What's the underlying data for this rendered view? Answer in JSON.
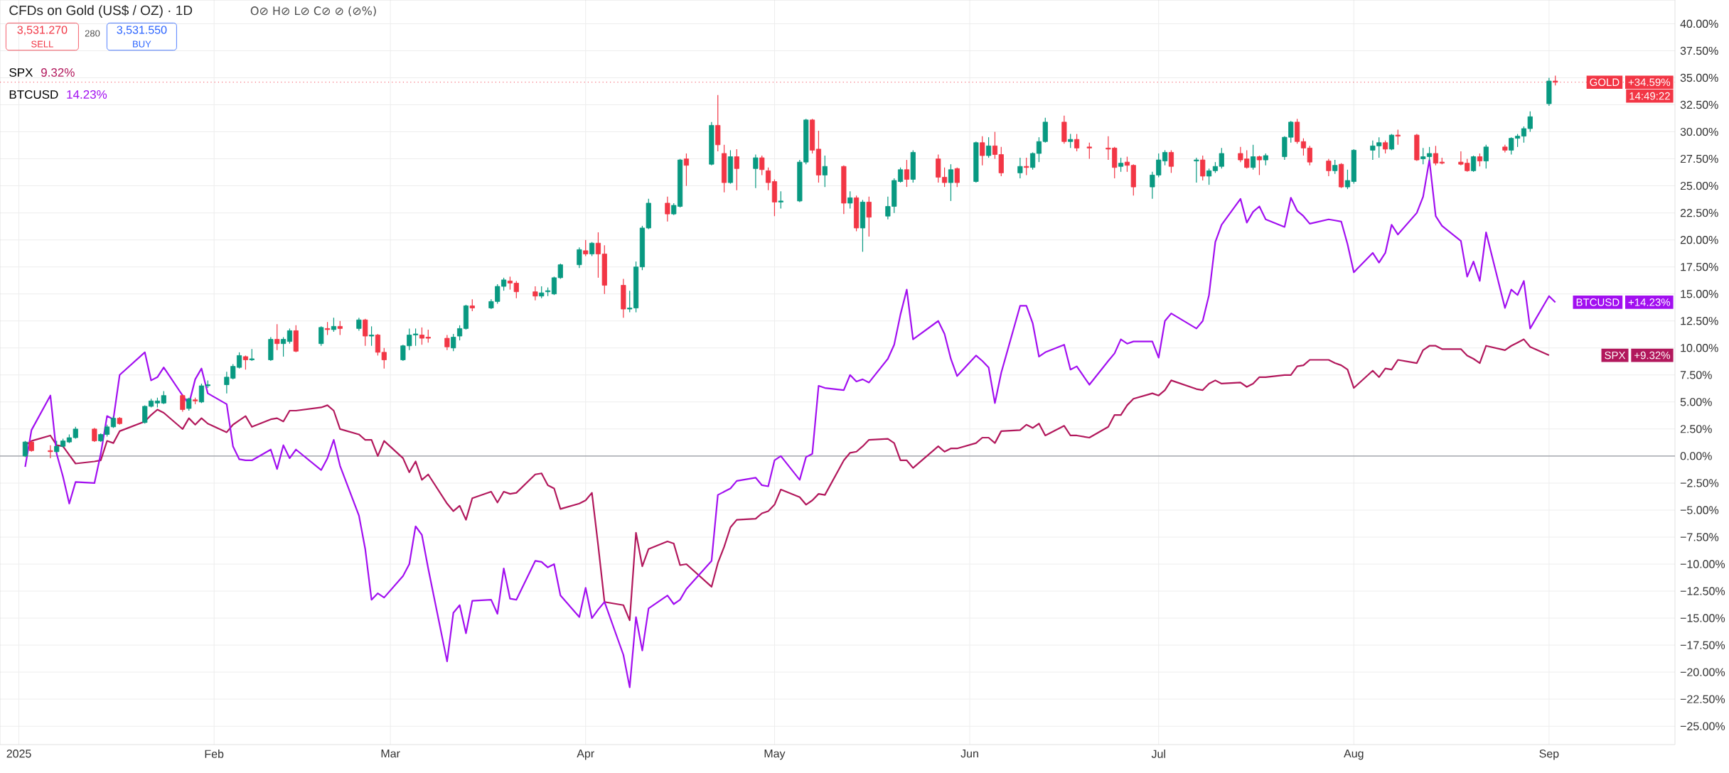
{
  "chart_data": {
    "type": "candlestick",
    "title": "CFDs on Gold (US$ / OZ) · 1D",
    "x": [
      "2025-01-02",
      "2025-01-03",
      "2025-01-06",
      "2025-01-07",
      "2025-01-08",
      "2025-01-09",
      "2025-01-10",
      "2025-01-13",
      "2025-01-14",
      "2025-01-15",
      "2025-01-16",
      "2025-01-17",
      "2025-01-21",
      "2025-01-22",
      "2025-01-23",
      "2025-01-24",
      "2025-01-27",
      "2025-01-28",
      "2025-01-29",
      "2025-01-30",
      "2025-01-31",
      "2025-02-03",
      "2025-02-04",
      "2025-02-05",
      "2025-02-06",
      "2025-02-07",
      "2025-02-10",
      "2025-02-11",
      "2025-02-12",
      "2025-02-13",
      "2025-02-14",
      "2025-02-18",
      "2025-02-19",
      "2025-02-20",
      "2025-02-21",
      "2025-02-24",
      "2025-02-25",
      "2025-02-26",
      "2025-02-27",
      "2025-02-28",
      "2025-03-03",
      "2025-03-04",
      "2025-03-05",
      "2025-03-06",
      "2025-03-07",
      "2025-03-10",
      "2025-03-11",
      "2025-03-12",
      "2025-03-13",
      "2025-03-14",
      "2025-03-17",
      "2025-03-18",
      "2025-03-19",
      "2025-03-20",
      "2025-03-21",
      "2025-03-24",
      "2025-03-25",
      "2025-03-26",
      "2025-03-27",
      "2025-03-28",
      "2025-03-31",
      "2025-04-01",
      "2025-04-02",
      "2025-04-03",
      "2025-04-04",
      "2025-04-07",
      "2025-04-08",
      "2025-04-09",
      "2025-04-10",
      "2025-04-11",
      "2025-04-14",
      "2025-04-15",
      "2025-04-16",
      "2025-04-17",
      "2025-04-21",
      "2025-04-22",
      "2025-04-23",
      "2025-04-24",
      "2025-04-25",
      "2025-04-28",
      "2025-04-29",
      "2025-04-30",
      "2025-05-01",
      "2025-05-02",
      "2025-05-05",
      "2025-05-06",
      "2025-05-07",
      "2025-05-08",
      "2025-05-09",
      "2025-05-12",
      "2025-05-13",
      "2025-05-14",
      "2025-05-15",
      "2025-05-16",
      "2025-05-19",
      "2025-05-20",
      "2025-05-21",
      "2025-05-22",
      "2025-05-23",
      "2025-05-27",
      "2025-05-28",
      "2025-05-29",
      "2025-05-30",
      "2025-06-02",
      "2025-06-03",
      "2025-06-04",
      "2025-06-05",
      "2025-06-06",
      "2025-06-09",
      "2025-06-10",
      "2025-06-11",
      "2025-06-12",
      "2025-06-13",
      "2025-06-16",
      "2025-06-17",
      "2025-06-18",
      "2025-06-20",
      "2025-06-23",
      "2025-06-24",
      "2025-06-25",
      "2025-06-26",
      "2025-06-27",
      "2025-06-30",
      "2025-07-01",
      "2025-07-02",
      "2025-07-03",
      "2025-07-07",
      "2025-07-08",
      "2025-07-09",
      "2025-07-10",
      "2025-07-11",
      "2025-07-14",
      "2025-07-15",
      "2025-07-16",
      "2025-07-17",
      "2025-07-18",
      "2025-07-21",
      "2025-07-22",
      "2025-07-23",
      "2025-07-24",
      "2025-07-25",
      "2025-07-28",
      "2025-07-29",
      "2025-07-30",
      "2025-07-31",
      "2025-08-01",
      "2025-08-04",
      "2025-08-05",
      "2025-08-06",
      "2025-08-07",
      "2025-08-08",
      "2025-08-11",
      "2025-08-12",
      "2025-08-13",
      "2025-08-14",
      "2025-08-15",
      "2025-08-18",
      "2025-08-19",
      "2025-08-20",
      "2025-08-21",
      "2025-08-22",
      "2025-08-25",
      "2025-08-26",
      "2025-08-27",
      "2025-08-28",
      "2025-08-29",
      "2025-09-01",
      "2025-09-02"
    ],
    "series": [
      {
        "name": "GOLD",
        "ohlc": [
          [
            0.0,
            1.4,
            -0.1,
            1.3
          ],
          [
            1.3,
            1.4,
            0.4,
            0.5
          ],
          [
            0.5,
            1.0,
            -0.2,
            0.4
          ],
          [
            0.4,
            1.4,
            0.3,
            0.9
          ],
          [
            0.9,
            1.6,
            0.8,
            1.4
          ],
          [
            1.3,
            2.0,
            1.2,
            1.7
          ],
          [
            1.7,
            2.7,
            1.6,
            2.5
          ],
          [
            2.5,
            2.6,
            1.3,
            1.4
          ],
          [
            1.4,
            2.1,
            1.3,
            2.0
          ],
          [
            2.0,
            2.9,
            1.8,
            2.7
          ],
          [
            2.7,
            3.7,
            2.6,
            3.5
          ],
          [
            3.5,
            3.6,
            2.9,
            3.0
          ],
          [
            3.1,
            4.7,
            3.0,
            4.6
          ],
          [
            4.6,
            5.3,
            4.5,
            5.1
          ],
          [
            4.9,
            5.4,
            4.5,
            5.1
          ],
          [
            4.9,
            6.0,
            4.8,
            5.6
          ],
          [
            5.6,
            5.7,
            4.1,
            4.3
          ],
          [
            4.4,
            5.4,
            4.2,
            5.3
          ],
          [
            5.2,
            5.4,
            4.8,
            5.1
          ],
          [
            5.0,
            6.7,
            4.9,
            6.5
          ],
          [
            6.5,
            7.0,
            6.3,
            6.6
          ],
          [
            6.6,
            7.8,
            5.8,
            7.3
          ],
          [
            7.2,
            8.5,
            7.1,
            8.3
          ],
          [
            8.2,
            9.6,
            8.1,
            9.3
          ],
          [
            9.2,
            9.3,
            8.0,
            8.9
          ],
          [
            8.9,
            9.9,
            8.8,
            9.0
          ],
          [
            8.9,
            11.0,
            8.8,
            10.8
          ],
          [
            10.8,
            12.2,
            9.8,
            10.4
          ],
          [
            10.4,
            11.0,
            9.2,
            10.8
          ],
          [
            10.6,
            11.8,
            10.4,
            11.6
          ],
          [
            11.6,
            12.1,
            9.6,
            9.7
          ],
          [
            10.4,
            12.0,
            10.2,
            11.9
          ],
          [
            11.8,
            12.4,
            11.2,
            11.7
          ],
          [
            11.7,
            12.8,
            11.5,
            12.0
          ],
          [
            12.0,
            12.5,
            11.2,
            11.8
          ],
          [
            11.8,
            12.8,
            11.6,
            12.6
          ],
          [
            12.6,
            12.7,
            10.2,
            11.1
          ],
          [
            11.1,
            12.0,
            10.2,
            11.2
          ],
          [
            11.2,
            11.3,
            9.3,
            9.6
          ],
          [
            9.6,
            10.0,
            8.1,
            8.9
          ],
          [
            8.9,
            10.3,
            8.8,
            10.2
          ],
          [
            10.2,
            11.8,
            9.8,
            11.2
          ],
          [
            11.2,
            11.8,
            10.2,
            11.3
          ],
          [
            11.2,
            11.9,
            10.3,
            10.9
          ],
          [
            11.0,
            11.7,
            10.5,
            10.9
          ],
          [
            10.9,
            11.2,
            9.8,
            10.1
          ],
          [
            10.0,
            11.3,
            9.7,
            11.0
          ],
          [
            11.1,
            12.1,
            10.7,
            11.8
          ],
          [
            11.8,
            14.0,
            11.7,
            13.9
          ],
          [
            13.9,
            14.5,
            13.4,
            13.7
          ],
          [
            13.7,
            14.5,
            13.6,
            14.3
          ],
          [
            14.3,
            15.9,
            14.1,
            15.7
          ],
          [
            15.7,
            16.5,
            15.3,
            16.3
          ],
          [
            16.2,
            16.6,
            15.4,
            16.0
          ],
          [
            16.0,
            16.2,
            14.6,
            15.2
          ],
          [
            15.2,
            15.7,
            14.4,
            14.8
          ],
          [
            14.8,
            15.7,
            14.6,
            15.1
          ],
          [
            15.2,
            15.6,
            14.8,
            15.3
          ],
          [
            15.0,
            16.6,
            14.9,
            16.5
          ],
          [
            16.5,
            17.8,
            16.4,
            17.7
          ],
          [
            17.7,
            19.3,
            17.4,
            19.1
          ],
          [
            19.0,
            20.0,
            18.5,
            18.7
          ],
          [
            18.7,
            19.8,
            18.5,
            19.7
          ],
          [
            19.7,
            20.7,
            16.5,
            18.7
          ],
          [
            18.7,
            19.5,
            15.0,
            15.8
          ],
          [
            15.8,
            16.4,
            12.8,
            13.6
          ],
          [
            13.6,
            15.3,
            13.3,
            13.7
          ],
          [
            13.7,
            18.0,
            13.3,
            17.5
          ],
          [
            17.5,
            21.3,
            17.2,
            21.1
          ],
          [
            21.1,
            23.8,
            21.0,
            23.4
          ],
          [
            23.4,
            24.0,
            21.7,
            22.4
          ],
          [
            22.4,
            23.4,
            22.3,
            23.2
          ],
          [
            23.1,
            27.5,
            23.0,
            27.4
          ],
          [
            27.5,
            28.0,
            25.0,
            26.9
          ],
          [
            27.0,
            30.9,
            26.9,
            30.6
          ],
          [
            30.6,
            33.4,
            28.2,
            28.8
          ],
          [
            28.0,
            28.8,
            24.4,
            25.3
          ],
          [
            25.3,
            28.3,
            25.2,
            27.7
          ],
          [
            27.7,
            28.4,
            24.6,
            26.6
          ],
          [
            26.6,
            27.9,
            24.8,
            27.6
          ],
          [
            27.6,
            27.8,
            26.0,
            26.5
          ],
          [
            26.4,
            26.7,
            24.6,
            25.3
          ],
          [
            25.4,
            25.6,
            22.2,
            23.5
          ],
          [
            23.5,
            24.5,
            22.9,
            23.6
          ],
          [
            23.6,
            27.4,
            23.5,
            27.2
          ],
          [
            27.2,
            31.2,
            27.0,
            31.1
          ],
          [
            31.1,
            31.2,
            28.0,
            28.3
          ],
          [
            28.4,
            30.1,
            25.3,
            26.0
          ],
          [
            26.0,
            27.8,
            24.9,
            26.8
          ],
          [
            26.8,
            26.9,
            22.4,
            23.4
          ],
          [
            23.4,
            24.5,
            22.9,
            23.9
          ],
          [
            23.9,
            24.1,
            20.8,
            21.1
          ],
          [
            21.1,
            23.7,
            18.9,
            23.5
          ],
          [
            23.5,
            24.0,
            20.3,
            22.1
          ],
          [
            22.2,
            24.0,
            21.9,
            23.1
          ],
          [
            23.1,
            25.7,
            22.5,
            25.5
          ],
          [
            25.4,
            26.7,
            25.3,
            26.5
          ],
          [
            26.5,
            27.4,
            24.9,
            25.6
          ],
          [
            25.6,
            28.3,
            25.3,
            28.1
          ],
          [
            27.5,
            27.9,
            25.3,
            25.8
          ],
          [
            25.8,
            26.7,
            24.9,
            25.3
          ],
          [
            25.3,
            27.0,
            23.6,
            26.5
          ],
          [
            26.6,
            26.7,
            24.9,
            25.3
          ],
          [
            25.4,
            29.1,
            25.3,
            29.0
          ],
          [
            29.0,
            29.6,
            26.9,
            27.8
          ],
          [
            27.8,
            29.5,
            27.6,
            28.7
          ],
          [
            28.7,
            30.0,
            27.5,
            27.9
          ],
          [
            27.9,
            28.6,
            25.9,
            26.2
          ],
          [
            26.2,
            27.6,
            25.7,
            26.8
          ],
          [
            26.8,
            27.6,
            26.0,
            26.7
          ],
          [
            26.7,
            28.1,
            26.5,
            28.0
          ],
          [
            28.0,
            29.5,
            27.2,
            29.1
          ],
          [
            29.1,
            31.3,
            29.0,
            30.9
          ],
          [
            30.9,
            31.5,
            28.9,
            29.1
          ],
          [
            29.1,
            29.8,
            28.5,
            29.3
          ],
          [
            29.3,
            29.8,
            28.2,
            28.5
          ],
          [
            28.6,
            29.0,
            27.5,
            28.5
          ],
          [
            28.5,
            29.6,
            27.4,
            28.4
          ],
          [
            28.5,
            28.6,
            25.7,
            26.7
          ],
          [
            26.8,
            27.6,
            26.3,
            27.1
          ],
          [
            27.2,
            27.7,
            26.3,
            26.9
          ],
          [
            26.9,
            27.0,
            24.1,
            24.9
          ],
          [
            24.9,
            26.3,
            23.8,
            26.0
          ],
          [
            26.0,
            28.0,
            25.8,
            27.4
          ],
          [
            27.3,
            28.3,
            26.9,
            28.1
          ],
          [
            28.1,
            28.3,
            26.2,
            26.8
          ],
          [
            27.3,
            27.6,
            25.3,
            27.4
          ],
          [
            27.4,
            27.8,
            25.5,
            25.9
          ],
          [
            25.9,
            26.6,
            25.1,
            26.4
          ],
          [
            26.4,
            27.2,
            26.2,
            26.8
          ],
          [
            26.8,
            28.5,
            26.6,
            28.0
          ],
          [
            28.0,
            28.6,
            27.2,
            27.4
          ],
          [
            27.5,
            28.3,
            26.6,
            26.7
          ],
          [
            26.7,
            28.8,
            26.5,
            27.7
          ],
          [
            27.7,
            27.8,
            26.0,
            27.4
          ],
          [
            27.4,
            28.0,
            26.9,
            27.8
          ],
          [
            27.7,
            29.6,
            27.4,
            29.5
          ],
          [
            29.5,
            31.0,
            29.0,
            30.9
          ],
          [
            30.9,
            31.2,
            28.9,
            29.1
          ],
          [
            29.1,
            29.4,
            27.8,
            28.5
          ],
          [
            28.5,
            28.7,
            26.9,
            27.2
          ],
          [
            27.3,
            27.5,
            25.9,
            26.4
          ],
          [
            26.4,
            27.4,
            26.1,
            26.9
          ],
          [
            27.0,
            27.1,
            24.8,
            24.9
          ],
          [
            24.9,
            26.5,
            24.7,
            25.5
          ],
          [
            25.4,
            28.4,
            25.2,
            28.3
          ],
          [
            28.3,
            29.2,
            27.4,
            28.7
          ],
          [
            28.7,
            29.5,
            27.6,
            29.0
          ],
          [
            29.0,
            29.2,
            28.0,
            28.4
          ],
          [
            28.4,
            29.8,
            28.3,
            29.7
          ],
          [
            29.7,
            30.2,
            28.8,
            29.6
          ],
          [
            29.7,
            29.8,
            27.3,
            27.4
          ],
          [
            27.5,
            28.5,
            27.0,
            27.7
          ],
          [
            27.7,
            28.6,
            27.3,
            28.0
          ],
          [
            28.0,
            28.7,
            26.9,
            27.1
          ],
          [
            27.2,
            27.6,
            27.0,
            27.1
          ],
          [
            27.2,
            28.2,
            26.9,
            27.0
          ],
          [
            27.1,
            27.5,
            26.3,
            26.4
          ],
          [
            26.4,
            27.8,
            26.3,
            27.7
          ],
          [
            27.7,
            28.0,
            26.8,
            27.3
          ],
          [
            27.3,
            28.8,
            26.6,
            28.6
          ],
          [
            28.6,
            28.8,
            28.1,
            28.3
          ],
          [
            28.3,
            29.5,
            27.9,
            29.4
          ],
          [
            29.4,
            29.8,
            28.6,
            29.6
          ],
          [
            29.6,
            30.5,
            29.0,
            30.3
          ],
          [
            30.3,
            31.9,
            30.0,
            31.4
          ],
          [
            32.6,
            35.0,
            32.4,
            34.7
          ],
          [
            34.7,
            35.2,
            34.3,
            34.59
          ]
        ]
      },
      {
        "name": "SPX",
        "type": "line",
        "color": "#b2185c",
        "values": [
          1.0,
          1.4,
          1.9,
          1.0,
          0.9,
          0.1,
          -0.7,
          -0.5,
          -0.4,
          1.4,
          1.2,
          2.3,
          3.2,
          3.8,
          4.3,
          4.0,
          2.5,
          3.5,
          2.9,
          3.5,
          3.0,
          2.2,
          2.9,
          3.3,
          3.7,
          2.7,
          3.4,
          3.5,
          3.2,
          4.2,
          4.2,
          4.5,
          4.7,
          4.2,
          2.5,
          2.0,
          1.5,
          1.5,
          0.0,
          1.4,
          -0.2,
          -1.5,
          -0.5,
          -2.2,
          -1.7,
          -4.4,
          -5.1,
          -4.6,
          -5.9,
          -3.9,
          -3.3,
          -4.3,
          -3.3,
          -3.5,
          -3.4,
          -1.7,
          -1.6,
          -2.7,
          -3.0,
          -4.9,
          -4.4,
          -4.1,
          -3.4,
          -8.3,
          -13.5,
          -13.8,
          -15.2,
          -7.1,
          -10.2,
          -8.6,
          -7.9,
          -8.1,
          -10.1,
          -10.0,
          -12.1,
          -9.9,
          -8.4,
          -6.6,
          -5.9,
          -5.8,
          -5.3,
          -5.1,
          -4.5,
          -3.1,
          -3.8,
          -4.5,
          -4.1,
          -3.5,
          -3.6,
          -0.4,
          0.3,
          0.4,
          0.9,
          1.5,
          1.6,
          1.2,
          -0.4,
          -0.4,
          -1.1,
          0.9,
          0.4,
          0.7,
          0.7,
          1.2,
          1.7,
          1.7,
          1.2,
          2.3,
          2.4,
          2.9,
          2.6,
          3.0,
          1.9,
          2.8,
          1.9,
          1.9,
          1.7,
          2.7,
          3.8,
          3.8,
          4.7,
          5.3,
          5.8,
          5.6,
          6.1,
          7.0,
          6.2,
          6.1,
          6.7,
          7.0,
          6.7,
          6.8,
          6.4,
          6.7,
          7.3,
          7.3,
          7.5,
          7.5,
          8.3,
          8.4,
          8.9,
          8.9,
          8.6,
          8.4,
          8.0,
          6.3,
          7.9,
          7.3,
          8.1,
          8.0,
          8.9,
          8.6,
          9.8,
          10.2,
          10.2,
          9.9,
          9.9,
          9.3,
          9.0,
          8.6,
          10.2,
          9.8,
          10.2,
          10.5,
          10.8,
          10.1,
          9.32,
          null
        ]
      },
      {
        "name": "BTCUSD",
        "type": "line",
        "color": "#a20ff0",
        "values": [
          -1.0,
          2.4,
          5.6,
          0.2,
          -1.9,
          -4.4,
          -2.4,
          -2.5,
          0.2,
          3.7,
          3.4,
          7.5,
          9.6,
          7.0,
          7.3,
          8.2,
          5.6,
          4.8,
          7.1,
          8.1,
          5.8,
          4.8,
          0.9,
          -0.3,
          -0.4,
          -0.4,
          0.6,
          -1.2,
          1.0,
          -0.2,
          0.6,
          -1.3,
          -0.2,
          1.5,
          -0.9,
          -5.5,
          -8.6,
          -13.3,
          -12.7,
          -13.1,
          -11.1,
          -10.0,
          -6.5,
          -7.3,
          -10.4,
          -19.0,
          -14.5,
          -13.8,
          -16.4,
          -13.4,
          -13.3,
          -14.6,
          -10.4,
          -13.2,
          -13.3,
          -9.7,
          -9.8,
          -10.3,
          -10.0,
          -12.9,
          -14.9,
          -12.2,
          -15.0,
          -14.2,
          -13.5,
          -18.4,
          -21.4,
          -14.9,
          -18.0,
          -14.1,
          -12.9,
          -13.7,
          -13.3,
          -12.3,
          -9.7,
          -3.6,
          -3.3,
          -3.0,
          -2.3,
          -2.0,
          -2.7,
          -2.8,
          -0.4,
          0.0,
          -2.2,
          -0.1,
          0.2,
          6.5,
          6.3,
          6.1,
          7.5,
          6.9,
          7.1,
          6.8,
          9.0,
          10.3,
          13.1,
          15.4,
          10.8,
          12.5,
          11.3,
          9.0,
          7.4,
          9.3,
          8.8,
          8.2,
          4.9,
          7.7,
          13.9,
          13.9,
          12.3,
          9.2,
          9.6,
          10.3,
          8.0,
          8.3,
          6.6,
          8.8,
          9.5,
          10.8,
          10.4,
          10.6,
          10.6,
          9.1,
          12.5,
          13.2,
          11.8,
          12.5,
          14.9,
          19.8,
          21.4,
          23.8,
          21.6,
          22.6,
          23.1,
          21.9,
          21.2,
          23.9,
          22.7,
          22.2,
          21.5,
          21.9,
          21.8,
          21.7,
          19.6,
          17.0,
          18.8,
          17.9,
          18.8,
          21.4,
          20.5,
          22.5,
          24.0,
          27.4,
          22.2,
          21.3,
          19.9,
          16.6,
          18.0,
          16.2,
          20.7,
          13.7,
          15.4,
          14.9,
          16.2,
          11.8,
          14.8,
          14.23
        ]
      }
    ],
    "xlim": [
      "2024-12-29",
      "2025-09-21"
    ],
    "xticks": [
      {
        "value": "2025-01-01",
        "label": "2025"
      },
      {
        "value": "2025-02-01",
        "label": "Feb"
      },
      {
        "value": "2025-03-01",
        "label": "Mar"
      },
      {
        "value": "2025-04-01",
        "label": "Apr"
      },
      {
        "value": "2025-05-01",
        "label": "May"
      },
      {
        "value": "2025-06-01",
        "label": "Jun"
      },
      {
        "value": "2025-07-01",
        "label": "Jul"
      },
      {
        "value": "2025-08-01",
        "label": "Aug"
      },
      {
        "value": "2025-09-01",
        "label": "Sep"
      }
    ],
    "ylim": [
      -26.7,
      42.2
    ],
    "yticks": [
      {
        "value": -25,
        "label": "−25.00%"
      },
      {
        "value": -22.5,
        "label": "−22.50%"
      },
      {
        "value": -20,
        "label": "−20.00%"
      },
      {
        "value": -17.5,
        "label": "−17.50%"
      },
      {
        "value": -15,
        "label": "−15.00%"
      },
      {
        "value": -12.5,
        "label": "−12.50%"
      },
      {
        "value": -10,
        "label": "−10.00%"
      },
      {
        "value": -7.5,
        "label": "−7.50%"
      },
      {
        "value": -5,
        "label": "−5.00%"
      },
      {
        "value": -2.5,
        "label": "−2.50%"
      },
      {
        "value": 0,
        "label": "0.00%"
      },
      {
        "value": 2.5,
        "label": "2.50%"
      },
      {
        "value": 5,
        "label": "5.00%"
      },
      {
        "value": 7.5,
        "label": "7.50%"
      },
      {
        "value": 10,
        "label": "10.00%"
      },
      {
        "value": 12.5,
        "label": "12.50%"
      },
      {
        "value": 15,
        "label": "15.00%"
      },
      {
        "value": 17.5,
        "label": "17.50%"
      },
      {
        "value": 20,
        "label": "20.00%"
      },
      {
        "value": 22.5,
        "label": "22.50%"
      },
      {
        "value": 25,
        "label": "25.00%"
      },
      {
        "value": 27.5,
        "label": "27.50%"
      },
      {
        "value": 30,
        "label": "30.00%"
      },
      {
        "value": 32.5,
        "label": "32.50%"
      },
      {
        "value": 35,
        "label": "35.00%"
      },
      {
        "value": 37.5,
        "label": "37.50%"
      },
      {
        "value": 40,
        "label": "40.00%"
      }
    ],
    "grid": true,
    "legend": "right",
    "ref_lines": [
      {
        "axis": "y",
        "value": 0,
        "color": "#9598a1",
        "line_style": "solid"
      },
      {
        "axis": "y",
        "value": 34.59,
        "color": "#f23645",
        "line_style": "dotted"
      }
    ],
    "annotations": [
      "3,531.270",
      "SELL",
      "280",
      "3,531.550",
      "BUY",
      "O⊘ H⊘ L⊘ C⊘ ⊘ (⊘%)",
      "9.32%",
      "14.23%",
      "+34.59%",
      "14:49:22",
      "+14.23%",
      "+9.32%"
    ]
  }
}
